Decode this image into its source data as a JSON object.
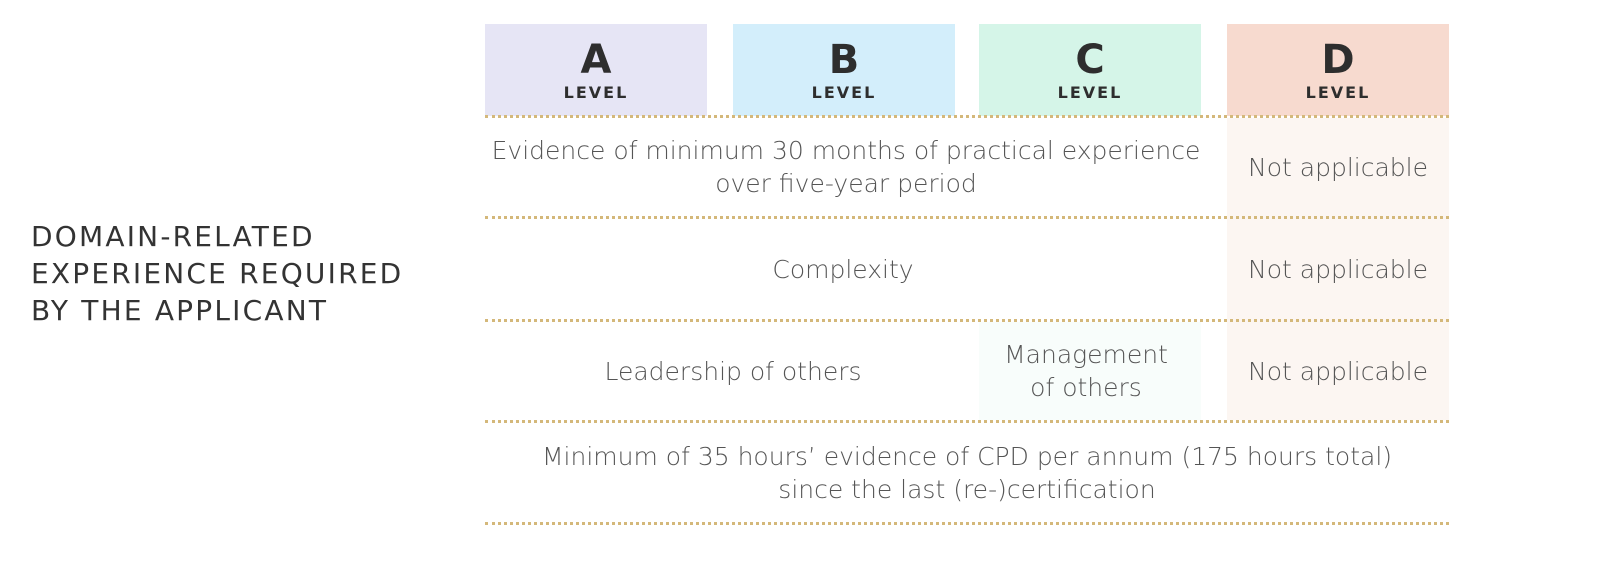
{
  "heading": {
    "line1": "DOMAIN-RELATED",
    "line2": "EXPERIENCE REQUIRED",
    "line3": "BY THE APPLICANT"
  },
  "levels": [
    {
      "letter": "A",
      "word": "LEVEL"
    },
    {
      "letter": "B",
      "word": "LEVEL"
    },
    {
      "letter": "C",
      "word": "LEVEL"
    },
    {
      "letter": "D",
      "word": "LEVEL"
    }
  ],
  "rows": {
    "experience": {
      "abc_line1": "Evidence of minimum 30 months of practical experience",
      "abc_line2": "over five-year period",
      "d": "Not applicable"
    },
    "complexity": {
      "abc": "Complexity",
      "d": "Not applicable"
    },
    "leadership": {
      "ab": "Leadership of others",
      "c_line1": "Management",
      "c_line2": "of others",
      "d": "Not applicable"
    },
    "cpd": {
      "line1": "Minimum of 35 hours’ evidence of CPD per annum (175 hours total)",
      "line2": "since the last (re-)certification"
    }
  },
  "colors": {
    "level_a": "#e6e5f5",
    "level_b": "#d3eefb",
    "level_c": "#d5f5e8",
    "level_d": "#f7dacf",
    "divider": "#d4b87a"
  }
}
